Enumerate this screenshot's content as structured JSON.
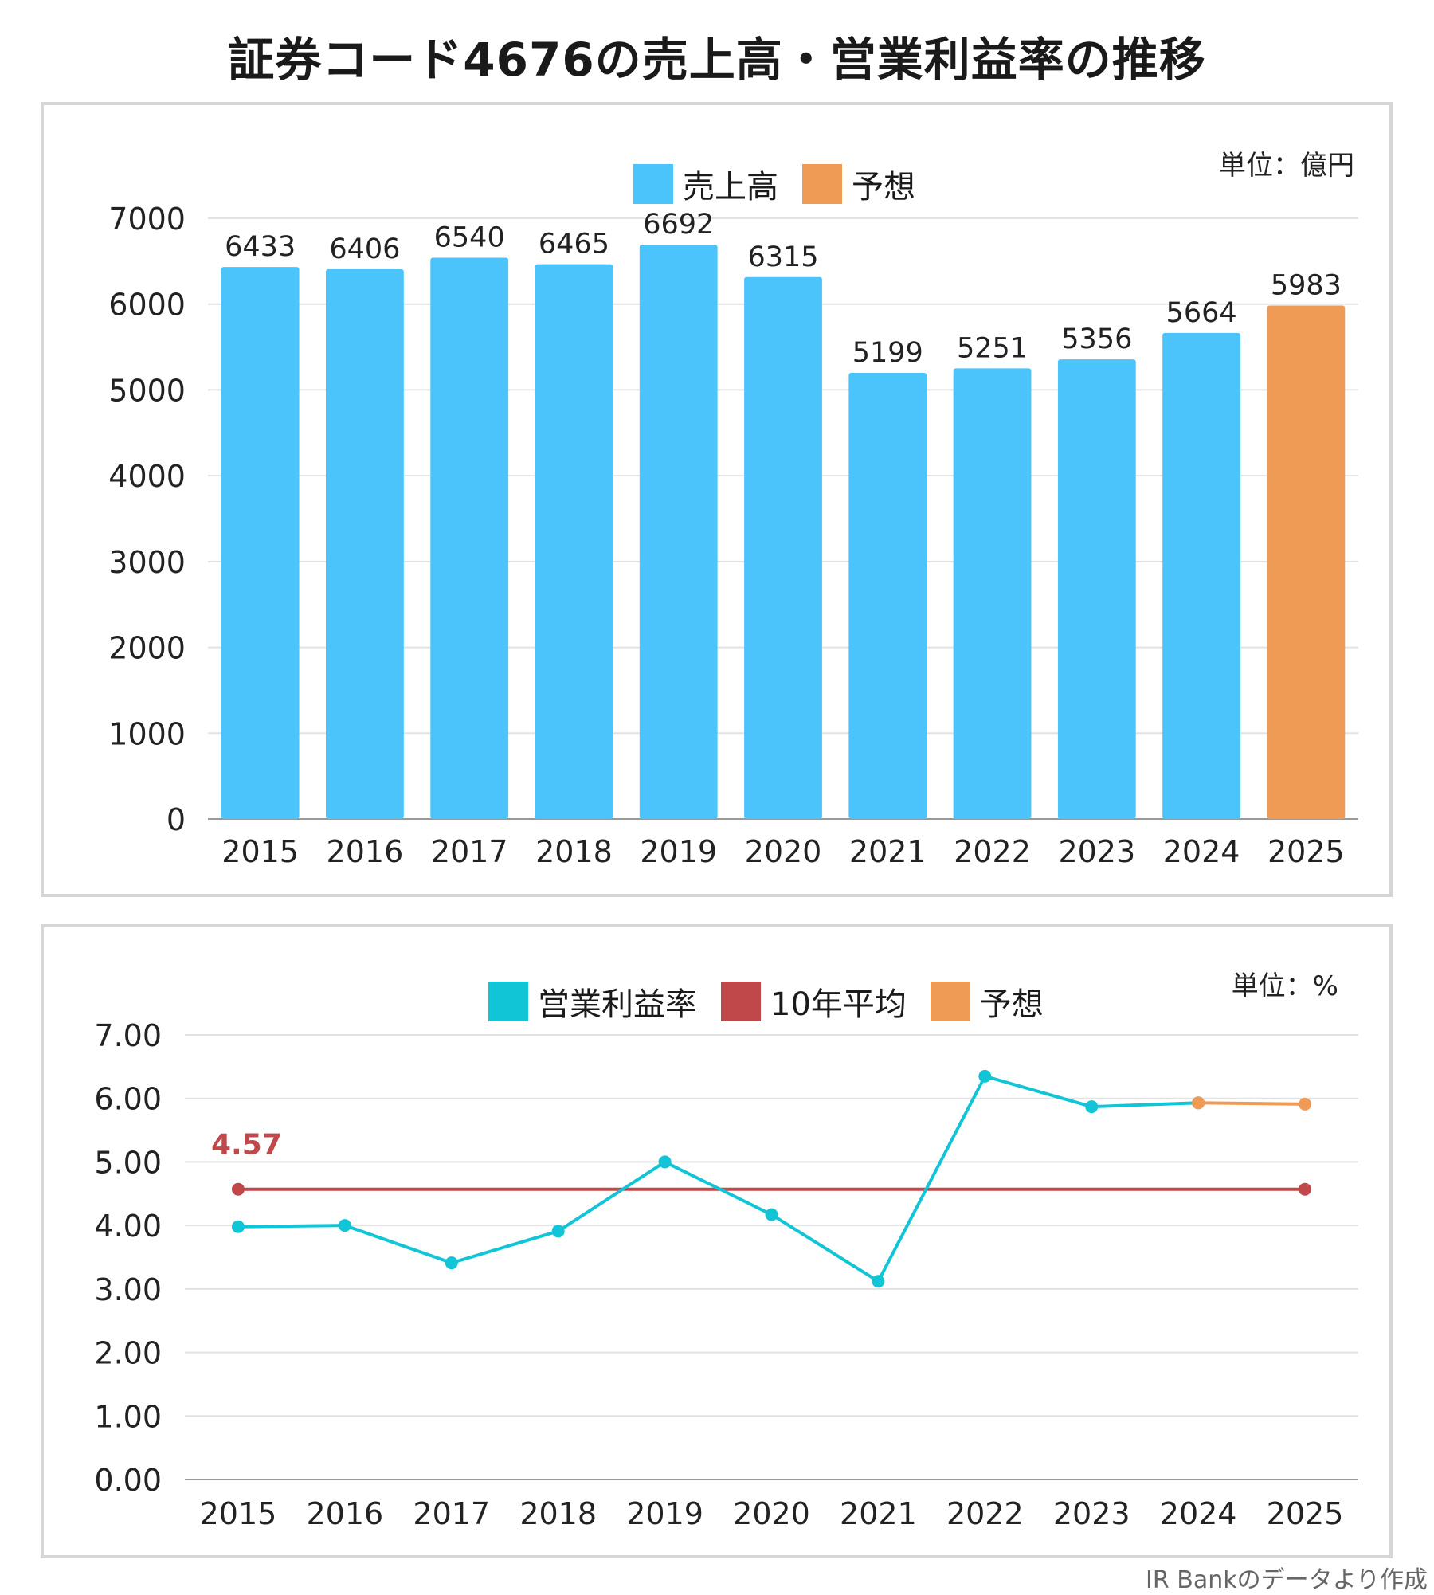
{
  "title": "証券コード4676の売上高・営業利益率の推移",
  "credit": "IR Bankのデータより作成",
  "colors": {
    "sales": "#4bc3fb",
    "forecast": "#ef9b56",
    "margin": "#12c5d6",
    "average": "#c0484a",
    "grid": "#e2e2e2",
    "axis": "#999999"
  },
  "chart_data": [
    {
      "type": "bar",
      "unit_label": "単位：億円",
      "legend": [
        {
          "label": "売上高",
          "color": "#4bc3fb"
        },
        {
          "label": "予想",
          "color": "#ef9b56"
        }
      ],
      "categories": [
        "2015",
        "2016",
        "2017",
        "2018",
        "2019",
        "2020",
        "2021",
        "2022",
        "2023",
        "2024",
        "2025"
      ],
      "values": [
        6433,
        6406,
        6540,
        6465,
        6692,
        6315,
        5199,
        5251,
        5356,
        5664,
        5983
      ],
      "forecast_index": [
        10
      ],
      "ylim": [
        0,
        7000
      ],
      "yticks": [
        "0",
        "1000",
        "2000",
        "3000",
        "4000",
        "5000",
        "6000",
        "7000"
      ],
      "grid": true,
      "legend_position": "top"
    },
    {
      "type": "line",
      "unit_label": "単位：%",
      "legend": [
        {
          "label": "営業利益率",
          "color": "#12c5d6"
        },
        {
          "label": "10年平均",
          "color": "#c0484a"
        },
        {
          "label": "予想",
          "color": "#ef9b56"
        }
      ],
      "categories": [
        "2015",
        "2016",
        "2017",
        "2018",
        "2019",
        "2020",
        "2021",
        "2022",
        "2023",
        "2024",
        "2025"
      ],
      "series": [
        {
          "name": "営業利益率",
          "values": [
            3.98,
            4.0,
            3.41,
            3.91,
            5.0,
            4.17,
            3.12,
            6.35,
            5.87,
            5.93,
            null
          ]
        },
        {
          "name": "予想",
          "values": [
            null,
            null,
            null,
            null,
            null,
            null,
            null,
            null,
            null,
            5.93,
            5.91
          ]
        },
        {
          "name": "10年平均",
          "values": [
            4.57,
            null,
            null,
            null,
            null,
            null,
            null,
            null,
            null,
            null,
            4.57
          ]
        }
      ],
      "average_label": "4.57",
      "ylim": [
        0,
        7
      ],
      "yticks": [
        "0.00",
        "1.00",
        "2.00",
        "3.00",
        "4.00",
        "5.00",
        "6.00",
        "7.00"
      ],
      "grid": true,
      "legend_position": "top"
    }
  ]
}
